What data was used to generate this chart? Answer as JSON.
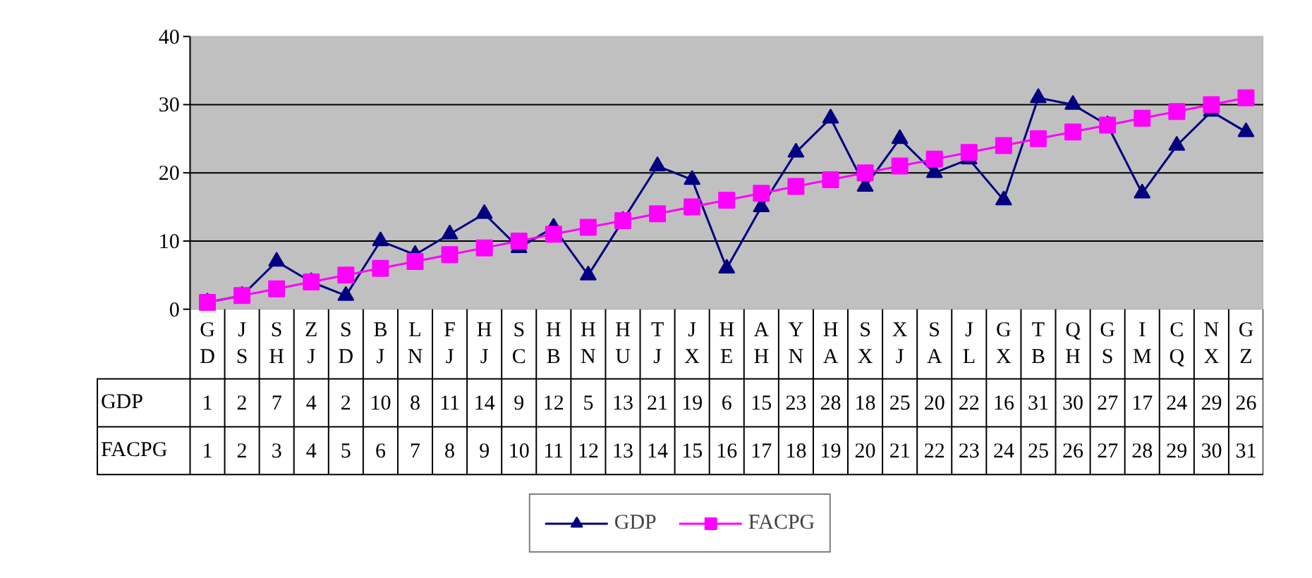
{
  "chart_data": {
    "type": "line",
    "categories": [
      "GD",
      "JS",
      "SH",
      "ZJ",
      "SD",
      "BJ",
      "LN",
      "FJ",
      "HJ",
      "SC",
      "HB",
      "HN",
      "HU",
      "TJ",
      "JX",
      "HE",
      "AH",
      "YN",
      "HA",
      "SX",
      "XJ",
      "SA",
      "JL",
      "GX",
      "TB",
      "QH",
      "GS",
      "IM",
      "CQ",
      "NX",
      "GZ"
    ],
    "series": [
      {
        "name": "GDP",
        "color": "#000080",
        "marker": "triangle",
        "values": [
          1,
          2,
          7,
          4,
          2,
          10,
          8,
          11,
          14,
          9,
          12,
          5,
          13,
          21,
          19,
          6,
          15,
          23,
          28,
          18,
          25,
          20,
          22,
          16,
          31,
          30,
          27,
          17,
          24,
          29,
          26
        ]
      },
      {
        "name": "FACPG",
        "color": "#ff00ff",
        "marker": "square",
        "values": [
          1,
          2,
          3,
          4,
          5,
          6,
          7,
          8,
          9,
          10,
          11,
          12,
          13,
          14,
          15,
          16,
          17,
          18,
          19,
          20,
          21,
          22,
          23,
          24,
          25,
          26,
          27,
          28,
          29,
          30,
          31
        ]
      }
    ],
    "ylim": [
      0,
      40
    ],
    "yticks": [
      0,
      10,
      20,
      30,
      40
    ],
    "grid": "y",
    "legend": "bottom",
    "data_labels": true,
    "line_style": "solid"
  }
}
